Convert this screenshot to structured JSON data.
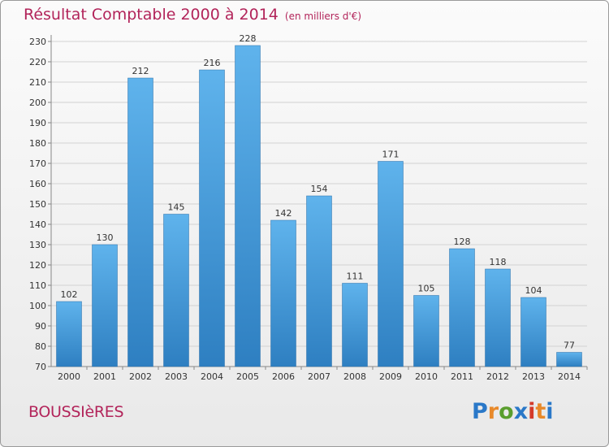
{
  "header": {
    "title": "Résultat Comptable 2000 à 2014",
    "unit": "(en milliers d'€)"
  },
  "footer": {
    "commune": "BOUSSIèRES",
    "logo_text": "Proxiti"
  },
  "colors": {
    "title": "#b2245a",
    "bar_top": "#5fb3ec",
    "bar_bottom": "#2e7fc1",
    "grid": "#d2d2d2",
    "logo": [
      "#2a78c8",
      "#e8892a",
      "#5a9e2e",
      "#2a78c8",
      "#d43a2a",
      "#e8892a",
      "#2a78c8"
    ]
  },
  "chart_data": {
    "type": "bar",
    "title": "Résultat Comptable 2000 à 2014",
    "subtitle": "(en milliers d'€)",
    "xlabel": "",
    "ylabel": "",
    "categories": [
      "2000",
      "2001",
      "2002",
      "2003",
      "2004",
      "2005",
      "2006",
      "2007",
      "2008",
      "2009",
      "2010",
      "2011",
      "2012",
      "2013",
      "2014"
    ],
    "values": [
      102,
      130,
      212,
      145,
      216,
      228,
      142,
      154,
      111,
      171,
      105,
      128,
      118,
      104,
      77
    ],
    "ylim": [
      70,
      230
    ],
    "yticks": [
      70,
      80,
      90,
      100,
      110,
      120,
      130,
      140,
      150,
      160,
      170,
      180,
      190,
      200,
      210,
      220,
      230
    ],
    "grid": true,
    "legend": "none"
  }
}
